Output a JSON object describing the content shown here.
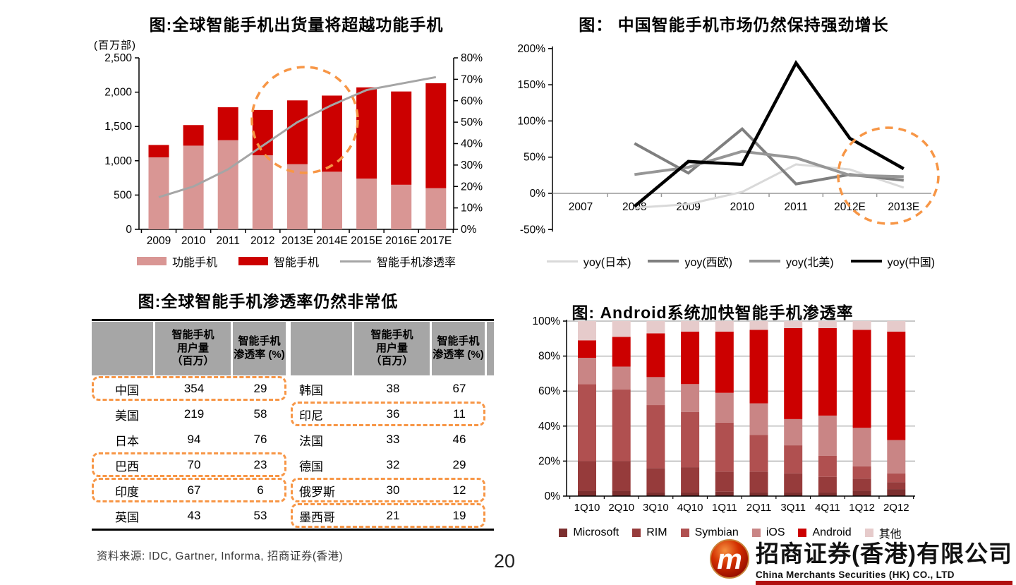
{
  "page": {
    "number": "20",
    "source_note": "资料来源: IDC, Gartner, Informa, 招商证券(香港)"
  },
  "logo": {
    "monogram": "m",
    "company_cn": "招商证券(香港)有限公司",
    "company_en": "China Merchants Securities (HK) CO., LTD"
  },
  "colors": {
    "accent_orange": "#F79646",
    "axis_black": "#000000",
    "grid_gray": "#A6A6A6",
    "zero_line_gray": "#999999"
  },
  "chart_data": [
    {
      "id": "global-shipments",
      "type": "bar",
      "title": "图:全球智能手机出货量将超越功能手机",
      "unit_label": "(百万部)",
      "categories": [
        "2009",
        "2010",
        "2011",
        "2012",
        "2013E",
        "2014E",
        "2015E",
        "2016E",
        "2017E"
      ],
      "series": [
        {
          "name": "功能手机",
          "type": "bar",
          "color": "#D99694",
          "values": [
            1050,
            1220,
            1300,
            1080,
            950,
            840,
            740,
            650,
            600
          ]
        },
        {
          "name": "智能手机",
          "type": "bar",
          "color": "#CC0000",
          "values": [
            180,
            300,
            480,
            660,
            930,
            1110,
            1330,
            1360,
            1530
          ]
        },
        {
          "name": "智能手机渗透率",
          "type": "line",
          "axis": "right",
          "color": "#A5A5A5",
          "line_width": 3,
          "values": [
            15,
            20,
            28,
            39,
            50,
            58,
            65,
            68,
            71
          ]
        }
      ],
      "left_axis": {
        "min": 0,
        "max": 2500,
        "step": 500,
        "ticks": [
          "0",
          "500",
          "1,000",
          "1,500",
          "2,000",
          "2,500"
        ]
      },
      "right_axis": {
        "min": 0,
        "max": 80,
        "step": 10,
        "ticks": [
          "0%",
          "10%",
          "20%",
          "30%",
          "40%",
          "50%",
          "60%",
          "70%",
          "80%"
        ]
      },
      "annotation": {
        "shape": "dashed-circle",
        "color": "#F79646",
        "around": "2012-2014E"
      }
    },
    {
      "id": "china-yoy-growth",
      "type": "line",
      "title": "图： 中国智能手机市场仍然保持强劲增长",
      "x": [
        "2007",
        "2008",
        "2009",
        "2010",
        "2011",
        "2012E",
        "2013E"
      ],
      "series": [
        {
          "name": "yoy(日本)",
          "color": "#D9D9D9",
          "line_width": 3,
          "values": [
            null,
            -20,
            -15,
            2,
            40,
            33,
            8
          ]
        },
        {
          "name": "yoy(西欧)",
          "color": "#7F7F7F",
          "line_width": 4,
          "values": [
            null,
            69,
            28,
            89,
            13,
            26,
            18
          ]
        },
        {
          "name": "yoy(北美)",
          "color": "#969696",
          "line_width": 4,
          "values": [
            null,
            26,
            36,
            58,
            49,
            25,
            23
          ]
        },
        {
          "name": "yoy(中国)",
          "color": "#000000",
          "line_width": 4.5,
          "values": [
            null,
            -18,
            44,
            40,
            180,
            76,
            34
          ]
        }
      ],
      "y_axis": {
        "min": -50,
        "max": 200,
        "step": 50,
        "ticks": [
          "-50%",
          "0%",
          "50%",
          "100%",
          "150%",
          "200%"
        ]
      },
      "annotation": {
        "shape": "dashed-circle",
        "color": "#F79646",
        "around": "2012E-2013E"
      }
    },
    {
      "id": "penetration-table",
      "type": "table",
      "title": "图:全球智能手机渗透率仍然非常低",
      "header_cells": [
        "",
        "智能手机\n用户量\n（百万）",
        "智能手机\n渗透率 (%)",
        "",
        "智能手机\n用户量\n（百万）",
        "智能手机\n渗透率 (%)"
      ],
      "rows": [
        {
          "left": [
            "中国",
            "354",
            "29"
          ],
          "left_highlight": true,
          "right": [
            "韩国",
            "38",
            "67"
          ],
          "right_highlight": false
        },
        {
          "left": [
            "美国",
            "219",
            "58"
          ],
          "left_highlight": false,
          "right": [
            "印尼",
            "36",
            "11"
          ],
          "right_highlight": true
        },
        {
          "left": [
            "日本",
            "94",
            "76"
          ],
          "left_highlight": false,
          "right": [
            "法国",
            "33",
            "46"
          ],
          "right_highlight": false
        },
        {
          "left": [
            "巴西",
            "70",
            "23"
          ],
          "left_highlight": true,
          "right": [
            "德国",
            "32",
            "29"
          ],
          "right_highlight": false
        },
        {
          "left": [
            "印度",
            "67",
            "6"
          ],
          "left_highlight": true,
          "right": [
            "俄罗斯",
            "30",
            "12"
          ],
          "right_highlight": true
        },
        {
          "left": [
            "英国",
            "43",
            "53"
          ],
          "left_highlight": false,
          "right": [
            "墨西哥",
            "21",
            "19"
          ],
          "right_highlight": true
        }
      ],
      "highlight_style": {
        "border": "dashed",
        "color": "#F79646"
      }
    },
    {
      "id": "os-share",
      "type": "stacked-bar-100",
      "title": "图: Android系统加快智能手机渗透率",
      "categories": [
        "1Q10",
        "2Q10",
        "3Q10",
        "4Q10",
        "1Q11",
        "2Q11",
        "3Q11",
        "4Q11",
        "1Q12",
        "2Q12"
      ],
      "series": [
        {
          "name": "Microsoft",
          "color": "#7C2F2F",
          "values": [
            3,
            3,
            2,
            2,
            2.5,
            2,
            2,
            2,
            3,
            4
          ]
        },
        {
          "name": "RIM",
          "color": "#963B3B",
          "values": [
            17,
            17,
            14,
            14.5,
            11.5,
            12,
            11,
            9,
            7,
            4
          ]
        },
        {
          "name": "Symbian",
          "color": "#B05050",
          "values": [
            44,
            41,
            36,
            31.5,
            28,
            21,
            16,
            12,
            7,
            5
          ]
        },
        {
          "name": "iOS",
          "color": "#C98585",
          "values": [
            15,
            13,
            16,
            16,
            17,
            18,
            15,
            23,
            22,
            19
          ]
        },
        {
          "name": "Android",
          "color": "#CC0000",
          "values": [
            10,
            17,
            25,
            30,
            35,
            42,
            52,
            50,
            56,
            62
          ]
        },
        {
          "name": "其他",
          "color": "#E6CBCB",
          "values": [
            11,
            9,
            7,
            6,
            6,
            5,
            4,
            4,
            5,
            6
          ]
        }
      ],
      "y_axis": {
        "min": 0,
        "max": 100,
        "step": 20,
        "ticks": [
          "0%",
          "20%",
          "40%",
          "60%",
          "80%",
          "100%"
        ]
      }
    }
  ]
}
